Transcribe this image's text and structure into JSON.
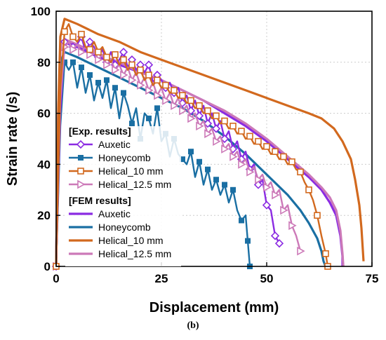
{
  "chart_data": {
    "type": "line",
    "title": "",
    "xlabel": "Displacement (mm)",
    "ylabel": "Strain rate (/s)",
    "xlim": [
      0,
      75
    ],
    "ylim": [
      0,
      100
    ],
    "x_ticks": [
      0,
      25,
      50,
      75
    ],
    "y_ticks": [
      0,
      20,
      40,
      60,
      80,
      100
    ],
    "grid": true,
    "panel_label": "(b)",
    "legend_position": "left-middle",
    "legend_groups": [
      {
        "heading": "[Exp. results]",
        "entries": [
          "Auxetic",
          "Honeycomb",
          "Helical_10 mm",
          "Helical_12.5 mm"
        ]
      },
      {
        "heading": "[FEM results]",
        "entries": [
          "Auxetic",
          "Honeycomb",
          "Helical_10 mm",
          "Helical_12.5 mm"
        ]
      }
    ],
    "series": [
      {
        "name": "Auxetic",
        "group": "exp",
        "color": "#8b2be2",
        "marker": "diamond",
        "points": [
          [
            0,
            0
          ],
          [
            1,
            60
          ],
          [
            2,
            88
          ],
          [
            3,
            87
          ],
          [
            4,
            86
          ],
          [
            5,
            87
          ],
          [
            6,
            90
          ],
          [
            7,
            84
          ],
          [
            8,
            88
          ],
          [
            9,
            86
          ],
          [
            10,
            82
          ],
          [
            11,
            85
          ],
          [
            12,
            80
          ],
          [
            13,
            84
          ],
          [
            14,
            79
          ],
          [
            15,
            81
          ],
          [
            16,
            84
          ],
          [
            17,
            78
          ],
          [
            18,
            81
          ],
          [
            19,
            77
          ],
          [
            20,
            79
          ],
          [
            21,
            76
          ],
          [
            22,
            79
          ],
          [
            23,
            72
          ],
          [
            24,
            75
          ],
          [
            25,
            73
          ],
          [
            26,
            70
          ],
          [
            27,
            72
          ],
          [
            28,
            68
          ],
          [
            29,
            70
          ],
          [
            30,
            64
          ],
          [
            31,
            67
          ],
          [
            32,
            61
          ],
          [
            33,
            65
          ],
          [
            34,
            59
          ],
          [
            35,
            63
          ],
          [
            36,
            56
          ],
          [
            37,
            60
          ],
          [
            38,
            54
          ],
          [
            39,
            57
          ],
          [
            40,
            50
          ],
          [
            41,
            53
          ],
          [
            42,
            46
          ],
          [
            43,
            49
          ],
          [
            44,
            42
          ],
          [
            45,
            45
          ],
          [
            46,
            38
          ],
          [
            47,
            40
          ],
          [
            48,
            32
          ],
          [
            49,
            34
          ],
          [
            50,
            24
          ],
          [
            51,
            22
          ],
          [
            52,
            12
          ],
          [
            53,
            9
          ]
        ]
      },
      {
        "name": "Honeycomb",
        "group": "exp",
        "color": "#1a6fa3",
        "marker": "square",
        "points": [
          [
            0,
            0
          ],
          [
            1,
            55
          ],
          [
            2,
            80
          ],
          [
            3,
            77
          ],
          [
            4,
            80
          ],
          [
            5,
            70
          ],
          [
            6,
            78
          ],
          [
            7,
            68
          ],
          [
            8,
            75
          ],
          [
            9,
            65
          ],
          [
            10,
            72
          ],
          [
            11,
            66
          ],
          [
            12,
            73
          ],
          [
            13,
            62
          ],
          [
            14,
            70
          ],
          [
            15,
            58
          ],
          [
            16,
            68
          ],
          [
            17,
            63
          ],
          [
            18,
            56
          ],
          [
            19,
            62
          ],
          [
            20,
            50
          ],
          [
            21,
            60
          ],
          [
            22,
            58
          ],
          [
            23,
            52
          ],
          [
            24,
            62
          ],
          [
            25,
            49
          ],
          [
            26,
            52
          ],
          [
            27,
            43
          ],
          [
            28,
            50
          ],
          [
            29,
            44
          ],
          [
            30,
            42
          ],
          [
            31,
            40
          ],
          [
            32,
            45
          ],
          [
            33,
            35
          ],
          [
            34,
            41
          ],
          [
            35,
            32
          ],
          [
            36,
            38
          ],
          [
            37,
            30
          ],
          [
            38,
            34
          ],
          [
            39,
            28
          ],
          [
            40,
            32
          ],
          [
            41,
            25
          ],
          [
            42,
            30
          ],
          [
            43,
            22
          ],
          [
            44,
            18
          ],
          [
            45,
            20
          ],
          [
            45.5,
            10
          ],
          [
            46,
            0
          ]
        ]
      },
      {
        "name": "Helical_10 mm",
        "group": "exp",
        "color": "#d2691e",
        "marker": "square-open",
        "points": [
          [
            0,
            0
          ],
          [
            1,
            70
          ],
          [
            2,
            92
          ],
          [
            3,
            95
          ],
          [
            4,
            90
          ],
          [
            5,
            88
          ],
          [
            6,
            91
          ],
          [
            7,
            86
          ],
          [
            8,
            85
          ],
          [
            9,
            88
          ],
          [
            10,
            84
          ],
          [
            11,
            86
          ],
          [
            12,
            82
          ],
          [
            13,
            80
          ],
          [
            14,
            83
          ],
          [
            15,
            79
          ],
          [
            16,
            81
          ],
          [
            17,
            77
          ],
          [
            18,
            79
          ],
          [
            19,
            75
          ],
          [
            20,
            77
          ],
          [
            21,
            73
          ],
          [
            22,
            75
          ],
          [
            23,
            71
          ],
          [
            24,
            73
          ],
          [
            25,
            70
          ],
          [
            26,
            71
          ],
          [
            27,
            68
          ],
          [
            28,
            69
          ],
          [
            29,
            66
          ],
          [
            30,
            67
          ],
          [
            31,
            64
          ],
          [
            32,
            65
          ],
          [
            33,
            62
          ],
          [
            34,
            63
          ],
          [
            35,
            60
          ],
          [
            36,
            61
          ],
          [
            37,
            58
          ],
          [
            38,
            59
          ],
          [
            39,
            56
          ],
          [
            40,
            57
          ],
          [
            41,
            54
          ],
          [
            42,
            55
          ],
          [
            43,
            52
          ],
          [
            44,
            53
          ],
          [
            45,
            50
          ],
          [
            46,
            51
          ],
          [
            47,
            48
          ],
          [
            48,
            49
          ],
          [
            49,
            46
          ],
          [
            50,
            47
          ],
          [
            51,
            44
          ],
          [
            52,
            45
          ],
          [
            53,
            42
          ],
          [
            54,
            43
          ],
          [
            55,
            40
          ],
          [
            56,
            41
          ],
          [
            57,
            38
          ],
          [
            58,
            37
          ],
          [
            59,
            33
          ],
          [
            60,
            30
          ],
          [
            61,
            26
          ],
          [
            62,
            20
          ],
          [
            63,
            12
          ],
          [
            64,
            5
          ],
          [
            64.5,
            0
          ]
        ]
      },
      {
        "name": "Helical_12.5 mm",
        "group": "exp",
        "color": "#cc79b8",
        "marker": "triangle-right",
        "points": [
          [
            0,
            0
          ],
          [
            1,
            65
          ],
          [
            2,
            86
          ],
          [
            3,
            88
          ],
          [
            4,
            85
          ],
          [
            5,
            87
          ],
          [
            6,
            84
          ],
          [
            7,
            86
          ],
          [
            8,
            83
          ],
          [
            9,
            85
          ],
          [
            10,
            81
          ],
          [
            11,
            83
          ],
          [
            12,
            79
          ],
          [
            13,
            81
          ],
          [
            14,
            77
          ],
          [
            15,
            79
          ],
          [
            16,
            75
          ],
          [
            17,
            78
          ],
          [
            18,
            73
          ],
          [
            19,
            76
          ],
          [
            20,
            71
          ],
          [
            21,
            74
          ],
          [
            22,
            69
          ],
          [
            23,
            72
          ],
          [
            24,
            67
          ],
          [
            25,
            70
          ],
          [
            26,
            65
          ],
          [
            27,
            68
          ],
          [
            28,
            63
          ],
          [
            29,
            66
          ],
          [
            30,
            61
          ],
          [
            31,
            63
          ],
          [
            32,
            58
          ],
          [
            33,
            60
          ],
          [
            34,
            55
          ],
          [
            35,
            57
          ],
          [
            36,
            52
          ],
          [
            37,
            54
          ],
          [
            38,
            49
          ],
          [
            39,
            51
          ],
          [
            40,
            46
          ],
          [
            41,
            48
          ],
          [
            42,
            43
          ],
          [
            43,
            45
          ],
          [
            44,
            40
          ],
          [
            45,
            42
          ],
          [
            46,
            37
          ],
          [
            47,
            39
          ],
          [
            48,
            34
          ],
          [
            49,
            36
          ],
          [
            50,
            31
          ],
          [
            51,
            33
          ],
          [
            52,
            28
          ],
          [
            53,
            30
          ],
          [
            54,
            22
          ],
          [
            55,
            24
          ],
          [
            56,
            16
          ],
          [
            57,
            12
          ],
          [
            58,
            6
          ]
        ]
      },
      {
        "name": "Auxetic",
        "group": "fem",
        "color": "#8b2be2",
        "marker": "none",
        "points": [
          [
            0,
            0
          ],
          [
            0.5,
            60
          ],
          [
            1,
            85
          ],
          [
            2,
            89
          ],
          [
            5,
            86
          ],
          [
            10,
            82
          ],
          [
            15,
            79
          ],
          [
            20,
            76
          ],
          [
            25,
            73
          ],
          [
            30,
            69
          ],
          [
            35,
            65
          ],
          [
            40,
            60
          ],
          [
            45,
            55
          ],
          [
            50,
            49
          ],
          [
            55,
            42
          ],
          [
            60,
            35
          ],
          [
            63,
            30
          ],
          [
            65,
            25
          ],
          [
            66.5,
            20
          ],
          [
            67.5,
            12
          ],
          [
            68,
            4
          ],
          [
            68,
            0
          ]
        ]
      },
      {
        "name": "Honeycomb",
        "group": "fem",
        "color": "#1a6fa3",
        "marker": "none",
        "points": [
          [
            0,
            0
          ],
          [
            0.5,
            58
          ],
          [
            1,
            80
          ],
          [
            2,
            84
          ],
          [
            5,
            82
          ],
          [
            10,
            78
          ],
          [
            15,
            74
          ],
          [
            20,
            70
          ],
          [
            25,
            66
          ],
          [
            30,
            62
          ],
          [
            35,
            57
          ],
          [
            40,
            51
          ],
          [
            45,
            44
          ],
          [
            50,
            36
          ],
          [
            55,
            28
          ],
          [
            58,
            22
          ],
          [
            60,
            17
          ],
          [
            62,
            11
          ],
          [
            63,
            6
          ],
          [
            63.5,
            2
          ],
          [
            64,
            0
          ]
        ]
      },
      {
        "name": "Helical_10 mm",
        "group": "fem",
        "color": "#d2691e",
        "marker": "none",
        "points": [
          [
            0,
            0
          ],
          [
            0.5,
            62
          ],
          [
            1,
            90
          ],
          [
            2,
            97
          ],
          [
            5,
            95
          ],
          [
            10,
            91
          ],
          [
            15,
            88
          ],
          [
            20,
            84
          ],
          [
            25,
            81
          ],
          [
            30,
            78
          ],
          [
            35,
            75
          ],
          [
            40,
            72
          ],
          [
            45,
            69
          ],
          [
            50,
            66
          ],
          [
            55,
            63
          ],
          [
            60,
            60
          ],
          [
            63,
            58
          ],
          [
            66,
            54
          ],
          [
            68,
            49
          ],
          [
            70,
            42
          ],
          [
            71,
            34
          ],
          [
            72,
            24
          ],
          [
            72.5,
            15
          ],
          [
            73,
            2
          ]
        ]
      },
      {
        "name": "Helical_12.5 mm",
        "group": "fem",
        "color": "#cc79b8",
        "marker": "none",
        "points": [
          [
            0,
            0
          ],
          [
            0.5,
            60
          ],
          [
            1,
            86
          ],
          [
            2,
            89
          ],
          [
            5,
            87
          ],
          [
            10,
            83
          ],
          [
            15,
            80
          ],
          [
            20,
            76
          ],
          [
            25,
            73
          ],
          [
            30,
            69
          ],
          [
            35,
            65
          ],
          [
            40,
            61
          ],
          [
            45,
            56
          ],
          [
            50,
            50
          ],
          [
            55,
            43
          ],
          [
            60,
            36
          ],
          [
            63,
            31
          ],
          [
            65,
            27
          ],
          [
            66.5,
            22
          ],
          [
            67.5,
            14
          ],
          [
            68,
            5
          ],
          [
            68.2,
            0
          ]
        ]
      }
    ]
  }
}
